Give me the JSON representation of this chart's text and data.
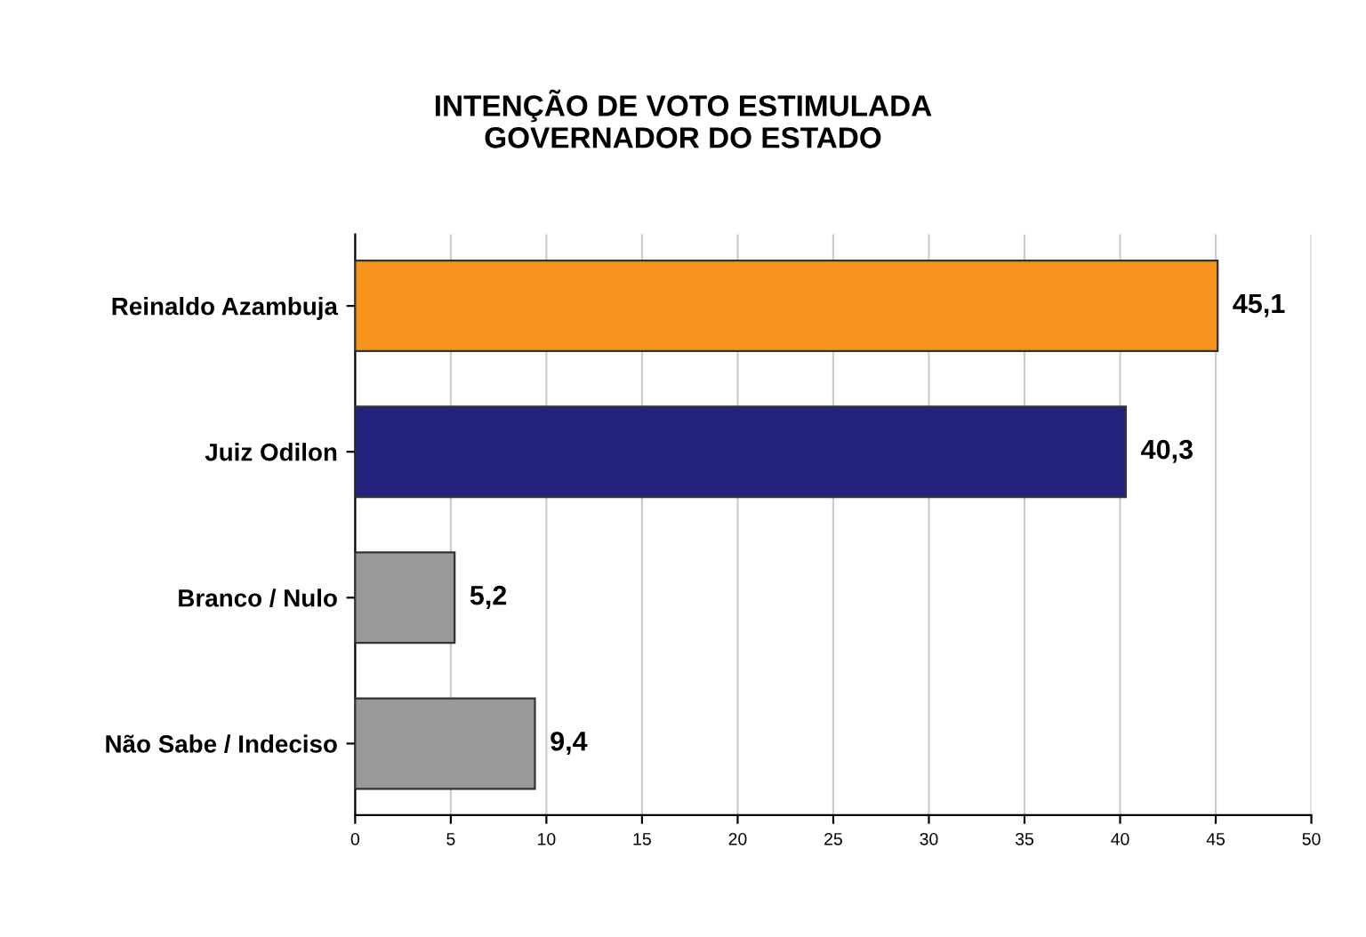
{
  "chart_data": {
    "type": "bar",
    "orientation": "horizontal",
    "title": "INTENÇÃO DE VOTO ESTIMULADA\nGOVERNADOR DO ESTADO",
    "categories": [
      "Reinaldo Azambuja",
      "Juiz Odilon",
      "Branco / Nulo",
      "Não Sabe / Indeciso"
    ],
    "values": [
      45.1,
      40.3,
      5.2,
      9.4
    ],
    "colors": [
      "#f7941d",
      "#23237f",
      "#9a9a9a",
      "#9a9a9a"
    ],
    "value_labels": [
      "45,1",
      "40,3",
      "5,2",
      "9,4"
    ],
    "xlim": [
      0,
      50
    ],
    "xticks": [
      0,
      5,
      10,
      15,
      20,
      25,
      30,
      35,
      40,
      45,
      50
    ],
    "grid": "x"
  }
}
